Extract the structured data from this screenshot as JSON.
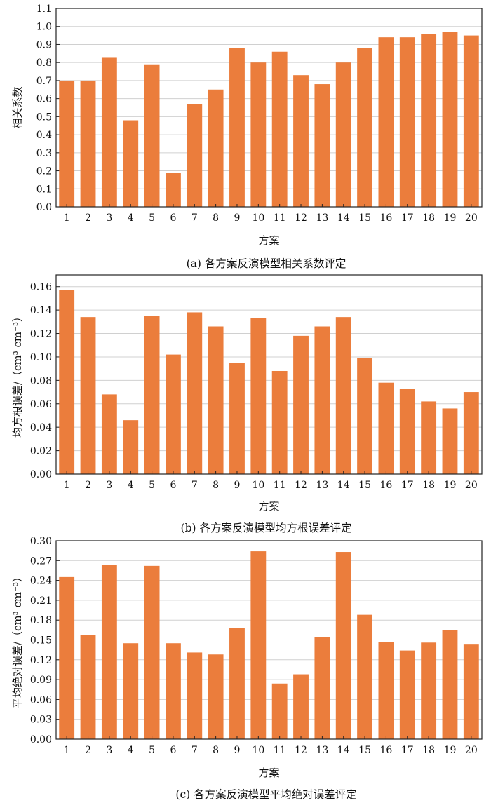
{
  "chart_data": [
    {
      "type": "bar",
      "caption": "(a) 各方案反演模型相关系数评定",
      "xlabel": "方案",
      "ylabel": "相关系数",
      "categories": [
        "1",
        "2",
        "3",
        "4",
        "5",
        "6",
        "7",
        "8",
        "9",
        "10",
        "11",
        "12",
        "13",
        "14",
        "15",
        "16",
        "17",
        "18",
        "19",
        "20"
      ],
      "values": [
        0.7,
        0.7,
        0.83,
        0.48,
        0.79,
        0.19,
        0.57,
        0.65,
        0.88,
        0.8,
        0.86,
        0.73,
        0.68,
        0.8,
        0.88,
        0.94,
        0.94,
        0.96,
        0.97,
        0.95
      ],
      "ylim": [
        0,
        1.1
      ],
      "yticks": [
        "0.0",
        "0.1",
        "0.2",
        "0.3",
        "0.4",
        "0.5",
        "0.6",
        "0.7",
        "0.8",
        "0.9",
        "1.0",
        "1.1"
      ],
      "color": "#eb7d3c",
      "grid": true
    },
    {
      "type": "bar",
      "caption": "(b) 各方案反演模型均方根误差评定",
      "xlabel": "方案",
      "ylabel": "均方根误差/（cm³ cm⁻³）",
      "categories": [
        "1",
        "2",
        "3",
        "4",
        "5",
        "6",
        "7",
        "8",
        "9",
        "10",
        "11",
        "12",
        "13",
        "14",
        "15",
        "16",
        "17",
        "18",
        "19",
        "20"
      ],
      "values": [
        0.157,
        0.134,
        0.068,
        0.046,
        0.135,
        0.102,
        0.138,
        0.126,
        0.095,
        0.133,
        0.088,
        0.118,
        0.126,
        0.134,
        0.099,
        0.078,
        0.073,
        0.062,
        0.056,
        0.07
      ],
      "ylim": [
        0,
        0.17
      ],
      "yticks": [
        "0.00",
        "0.02",
        "0.04",
        "0.06",
        "0.08",
        "0.10",
        "0.12",
        "0.14",
        "0.16"
      ],
      "color": "#eb7d3c",
      "grid": true
    },
    {
      "type": "bar",
      "caption": "(c) 各方案反演模型平均绝对误差评定",
      "xlabel": "方案",
      "ylabel": "平均绝对误差/（cm³ cm⁻³）",
      "categories": [
        "1",
        "2",
        "3",
        "4",
        "5",
        "6",
        "7",
        "8",
        "9",
        "10",
        "11",
        "12",
        "13",
        "14",
        "15",
        "16",
        "17",
        "18",
        "19",
        "20"
      ],
      "values": [
        0.245,
        0.157,
        0.263,
        0.145,
        0.262,
        0.145,
        0.131,
        0.128,
        0.168,
        0.284,
        0.084,
        0.098,
        0.154,
        0.283,
        0.188,
        0.147,
        0.134,
        0.146,
        0.165,
        0.144
      ],
      "ylim": [
        0,
        0.3
      ],
      "yticks": [
        "0.00",
        "0.03",
        "0.06",
        "0.09",
        "0.12",
        "0.15",
        "0.18",
        "0.21",
        "0.24",
        "0.27",
        "0.30"
      ],
      "color": "#eb7d3c",
      "grid": true
    }
  ]
}
